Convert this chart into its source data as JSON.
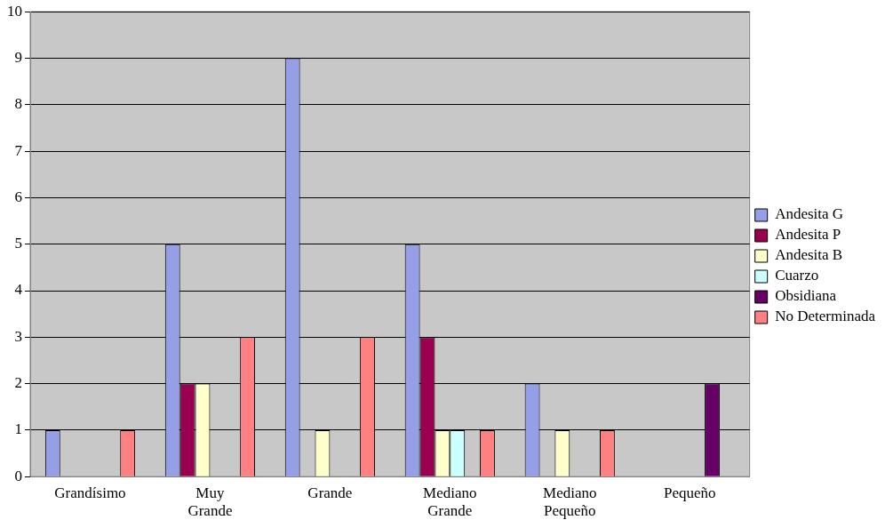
{
  "chart_data": {
    "type": "bar",
    "categories": [
      "Grandísimo",
      "Muy Grande",
      "Grande",
      "Mediano Grande",
      "Mediano Pequeño",
      "Pequeño"
    ],
    "series": [
      {
        "name": "Andesita G",
        "color": "#959fe6",
        "values": [
          1,
          5,
          9,
          5,
          2,
          null
        ]
      },
      {
        "name": "Andesita P",
        "color": "#990050",
        "values": [
          null,
          2,
          null,
          3,
          null,
          null
        ]
      },
      {
        "name": "Andesita B",
        "color": "#ffffcc",
        "values": [
          null,
          2,
          1,
          1,
          1,
          null
        ]
      },
      {
        "name": "Cuarzo",
        "color": "#ccffff",
        "values": [
          null,
          null,
          null,
          1,
          null,
          null
        ]
      },
      {
        "name": "Obsidiana",
        "color": "#660066",
        "values": [
          null,
          null,
          null,
          null,
          null,
          2
        ]
      },
      {
        "name": "No Determinada",
        "color": "#ff8080",
        "values": [
          1,
          3,
          3,
          1,
          1,
          null
        ]
      }
    ],
    "ylim": [
      0,
      10
    ],
    "yticks": [
      0,
      1,
      2,
      3,
      4,
      5,
      6,
      7,
      8,
      9,
      10
    ],
    "grid": "y",
    "legend": "right"
  }
}
